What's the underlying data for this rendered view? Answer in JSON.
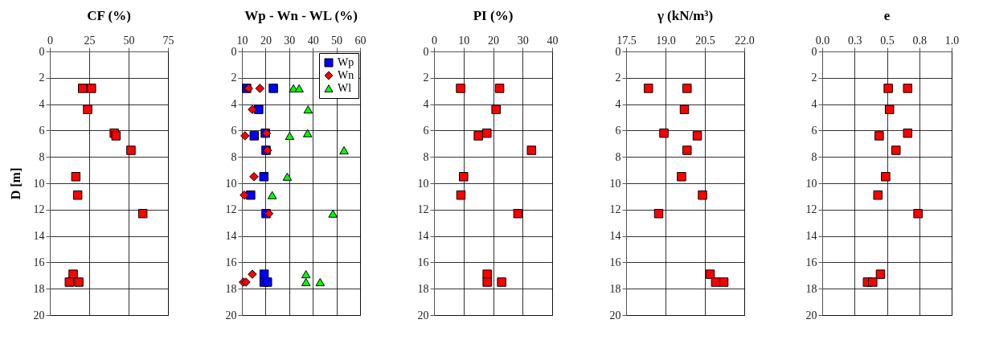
{
  "chart_data": [
    {
      "type": "scatter",
      "title": "CF (%)",
      "ylabel": "D [m]",
      "xlim": [
        0,
        75
      ],
      "xticks": [
        0,
        25,
        50,
        75
      ],
      "ylim": [
        20,
        0
      ],
      "yticks": [
        0,
        2,
        4,
        6,
        8,
        10,
        12,
        14,
        16,
        18,
        20
      ],
      "grid": true,
      "marker": "square",
      "series": [
        {
          "color": "#ff0000",
          "x": [
            20.8,
            26.4,
            24,
            40.9,
            42,
            51.5,
            16.5,
            17.7,
            59,
            14.8,
            12.4,
            18.4
          ],
          "values": [
            2.8,
            2.8,
            4.4,
            6.2,
            6.4,
            7.5,
            9.5,
            10.9,
            12.3,
            16.9,
            17.5,
            17.5
          ]
        }
      ]
    },
    {
      "type": "scatter",
      "title": "Wp - Wn - WL (%)",
      "xlim": [
        10,
        60
      ],
      "xticks": [
        10,
        20,
        30,
        40,
        50,
        60
      ],
      "ylim": [
        20,
        0
      ],
      "yticks": [
        0,
        2,
        4,
        6,
        8,
        10,
        12,
        14,
        16,
        18,
        20
      ],
      "grid": true,
      "legend": "top right",
      "series": [
        {
          "name": "Wp",
          "color": "#0000ff",
          "marker": "square",
          "x": [
            12,
            23.3,
            17.1,
            19.9,
            15.2,
            20.2,
            19.3,
            13.7,
            20.2,
            19.4,
            19.4,
            20.8
          ],
          "values": [
            2.8,
            2.8,
            4.4,
            6.2,
            6.4,
            7.5,
            9.5,
            10.9,
            12.3,
            16.9,
            17.5,
            17.5
          ]
        },
        {
          "name": "Wn",
          "color": "#ff0000",
          "marker": "diamond",
          "x": [
            12.8,
            17.6,
            14.4,
            20.4,
            11.3,
            20.8,
            15.1,
            11,
            21.4,
            14.4,
            10.6,
            11.7
          ],
          "values": [
            2.8,
            2.8,
            4.4,
            6.2,
            6.4,
            7.5,
            9.5,
            10.9,
            12.3,
            16.9,
            17.5,
            17.5
          ]
        },
        {
          "name": "Wl",
          "color": "#00ff00",
          "marker": "triangle",
          "x": [
            31.8,
            34.2,
            38,
            37.8,
            30.2,
            53.2,
            29.2,
            22.8,
            48.5,
            37.1,
            37.1,
            43.1
          ],
          "values": [
            2.8,
            2.8,
            4.4,
            6.2,
            6.4,
            7.5,
            9.5,
            10.9,
            12.3,
            16.9,
            17.5,
            17.5
          ]
        }
      ]
    },
    {
      "type": "scatter",
      "title": "PI (%)",
      "xlim": [
        0,
        40
      ],
      "xticks": [
        0,
        10,
        20,
        30,
        40
      ],
      "ylim": [
        20,
        0
      ],
      "yticks": [
        0,
        2,
        4,
        6,
        8,
        10,
        12,
        14,
        16,
        18,
        20
      ],
      "grid": true,
      "marker": "square",
      "series": [
        {
          "color": "#ff0000",
          "x": [
            9,
            22.2,
            21,
            17.9,
            15,
            33,
            10,
            9.1,
            28.4,
            18,
            18,
            22.9
          ],
          "values": [
            2.8,
            2.8,
            4.4,
            6.2,
            6.4,
            7.5,
            9.5,
            10.9,
            12.3,
            16.9,
            17.5,
            17.5
          ]
        }
      ]
    },
    {
      "type": "scatter",
      "title": "γ (kN/m³)",
      "xlim": [
        17.5,
        22.0
      ],
      "xticks": [
        17.5,
        {
          "value": 19,
          "label": "19.0"
        },
        20.5,
        {
          "value": 22,
          "label": "22.0"
        }
      ],
      "ylim": [
        20,
        0
      ],
      "yticks": [
        0,
        2,
        4,
        6,
        8,
        10,
        12,
        14,
        16,
        18,
        20
      ],
      "grid": true,
      "marker": "square",
      "series": [
        {
          "color": "#ff0000",
          "x": [
            18.35,
            19.82,
            19.72,
            18.94,
            20.21,
            19.82,
            19.61,
            20.41,
            18.74,
            20.7,
            20.91,
            21.22
          ],
          "values": [
            2.8,
            2.8,
            4.4,
            6.2,
            6.4,
            7.5,
            9.5,
            10.9,
            12.3,
            16.9,
            17.5,
            17.5
          ]
        }
      ]
    },
    {
      "type": "scatter",
      "title": "e",
      "xlim": [
        0,
        1
      ],
      "xticks": [
        {
          "value": 0,
          "label": "0.0"
        },
        {
          "value": 0.25,
          "label": "0.3"
        },
        0.5,
        {
          "value": 0.75,
          "label": "0.8"
        },
        {
          "value": 1,
          "label": "1.0"
        }
      ],
      "ylim": [
        20,
        0
      ],
      "yticks": [
        0,
        2,
        4,
        6,
        8,
        10,
        12,
        14,
        16,
        18,
        20
      ],
      "grid": true,
      "marker": "square",
      "series": [
        {
          "color": "#ff0000",
          "x": [
            0.51,
            0.66,
            0.52,
            0.66,
            0.44,
            0.57,
            0.49,
            0.43,
            0.74,
            0.45,
            0.35,
            0.39
          ],
          "values": [
            2.8,
            2.8,
            4.4,
            6.2,
            6.4,
            7.5,
            9.5,
            10.9,
            12.3,
            16.9,
            17.5,
            17.5
          ]
        }
      ]
    }
  ]
}
